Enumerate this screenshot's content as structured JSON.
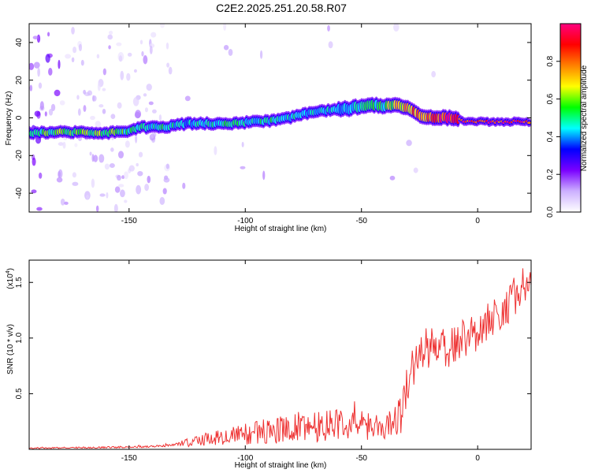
{
  "title": "C2E2.2025.251.20.58.R07",
  "chart_data": [
    {
      "type": "heatmap",
      "xlabel": "Height of straight line (km)",
      "ylabel": "Frequency (Hz)",
      "xlim": [
        -193,
        23
      ],
      "ylim": [
        -50,
        50
      ],
      "x_ticks": [
        -150,
        -100,
        -50,
        0
      ],
      "y_ticks": [
        -40,
        -20,
        0,
        20,
        40
      ],
      "colorbar": {
        "label": "Normalized spectral amplitude",
        "range": [
          0,
          1
        ],
        "ticks": [
          0.0,
          0.2,
          0.4,
          0.6,
          0.8
        ],
        "tick_labels": [
          "0.0",
          "0.2",
          "0.4",
          "0.6",
          "0.8"
        ],
        "colors": [
          "#ffffff",
          "#ccb0ff",
          "#7a00ff",
          "#0000ff",
          "#00ffff",
          "#00ff00",
          "#ffff00",
          "#ff8000",
          "#ff0000",
          "#ff0080"
        ]
      },
      "ridge": [
        {
          "x": -190,
          "y": -8
        },
        {
          "x": -180,
          "y": -7.5
        },
        {
          "x": -170,
          "y": -7.5
        },
        {
          "x": -160,
          "y": -8
        },
        {
          "x": -150,
          "y": -7
        },
        {
          "x": -145,
          "y": -5
        },
        {
          "x": -135,
          "y": -5
        },
        {
          "x": -125,
          "y": -3
        },
        {
          "x": -115,
          "y": -3
        },
        {
          "x": -105,
          "y": -3
        },
        {
          "x": -95,
          "y": -2
        },
        {
          "x": -85,
          "y": -1
        },
        {
          "x": -75,
          "y": 2
        },
        {
          "x": -65,
          "y": 4
        },
        {
          "x": -55,
          "y": 5
        },
        {
          "x": -47,
          "y": 7
        },
        {
          "x": -40,
          "y": 6
        },
        {
          "x": -35,
          "y": 7
        },
        {
          "x": -30,
          "y": 5
        },
        {
          "x": -25,
          "y": 1
        },
        {
          "x": -18,
          "y": 0
        },
        {
          "x": -10,
          "y": 0
        },
        {
          "x": -5,
          "y": -2
        },
        {
          "x": 5,
          "y": -2
        },
        {
          "x": 15,
          "y": -2
        },
        {
          "x": 22,
          "y": -2
        }
      ],
      "ridge_amplitude": [
        0.55,
        0.6,
        0.6,
        0.6,
        0.55,
        0.5,
        0.5,
        0.45,
        0.5,
        0.5,
        0.5,
        0.5,
        0.5,
        0.45,
        0.45,
        0.5,
        0.55,
        0.7,
        0.75,
        0.8,
        0.9,
        0.95,
        0.95,
        0.95,
        0.95,
        0.95
      ]
    },
    {
      "type": "line",
      "xlabel": "Height of straight line (km)",
      "ylabel": "SNR (10 * v/v)",
      "y_multiplier": "(x10",
      "y_multiplier_exp": "4",
      "xlim": [
        -193,
        23
      ],
      "ylim": [
        0,
        1.7
      ],
      "x_ticks": [
        -150,
        -100,
        -50,
        0
      ],
      "y_ticks": [
        0.5,
        1.0,
        1.5
      ],
      "y_tick_labels": [
        "0.5",
        "1.0",
        "1.5"
      ],
      "color": "#ee3333",
      "trend": [
        {
          "x": -193,
          "y": 0.01
        },
        {
          "x": -170,
          "y": 0.015
        },
        {
          "x": -150,
          "y": 0.02
        },
        {
          "x": -135,
          "y": 0.03
        },
        {
          "x": -125,
          "y": 0.06
        },
        {
          "x": -110,
          "y": 0.1
        },
        {
          "x": -100,
          "y": 0.13
        },
        {
          "x": -90,
          "y": 0.15
        },
        {
          "x": -80,
          "y": 0.18
        },
        {
          "x": -70,
          "y": 0.2
        },
        {
          "x": -60,
          "y": 0.22
        },
        {
          "x": -50,
          "y": 0.2
        },
        {
          "x": -40,
          "y": 0.18
        },
        {
          "x": -33,
          "y": 0.3
        },
        {
          "x": -30,
          "y": 0.6
        },
        {
          "x": -25,
          "y": 0.85
        },
        {
          "x": -20,
          "y": 0.9
        },
        {
          "x": -10,
          "y": 0.9
        },
        {
          "x": -5,
          "y": 1.0
        },
        {
          "x": 0,
          "y": 1.05
        },
        {
          "x": 5,
          "y": 1.15
        },
        {
          "x": 10,
          "y": 1.2
        },
        {
          "x": 15,
          "y": 1.35
        },
        {
          "x": 20,
          "y": 1.45
        },
        {
          "x": 23,
          "y": 1.5
        }
      ],
      "noise_amplitude": [
        {
          "x": -193,
          "y": 0.005
        },
        {
          "x": -130,
          "y": 0.01
        },
        {
          "x": -125,
          "y": 0.04
        },
        {
          "x": -100,
          "y": 0.1
        },
        {
          "x": -70,
          "y": 0.15
        },
        {
          "x": -40,
          "y": 0.12
        },
        {
          "x": -30,
          "y": 0.2
        },
        {
          "x": 0,
          "y": 0.18
        },
        {
          "x": 23,
          "y": 0.18
        }
      ]
    }
  ]
}
